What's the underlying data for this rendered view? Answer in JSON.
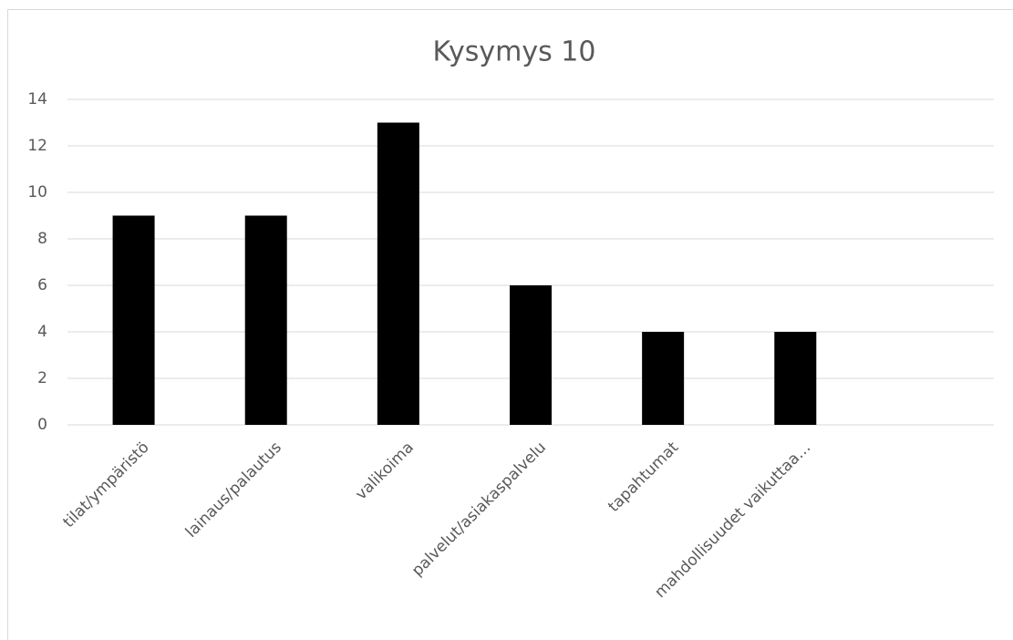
{
  "chart_data": {
    "type": "bar",
    "title": "Kysymys 10",
    "categories": [
      "tilat/ympäristö",
      "lainaus/palautus",
      "valikoima",
      "palvelut/asiakaspalvelu",
      "tapahtumat",
      "mahdollisuudet vaikuttaa…",
      null
    ],
    "values": [
      9,
      9,
      13,
      6,
      4,
      4,
      null
    ],
    "color": "#000000",
    "ylim": [
      0,
      14
    ],
    "yticks": [
      0,
      2,
      4,
      6,
      8,
      10,
      12,
      14
    ],
    "grid": true
  }
}
